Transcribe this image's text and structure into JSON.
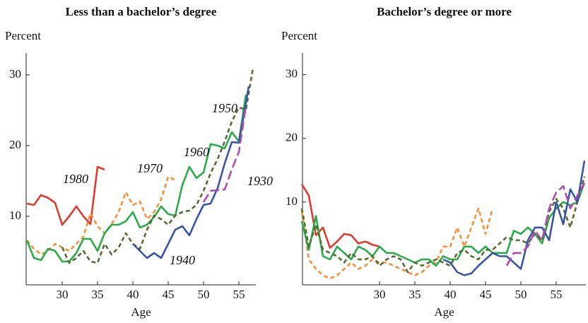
{
  "chart_data": [
    {
      "type": "line",
      "title": "Less than a bachelor’s degree",
      "y_label": "Percent",
      "x_label": "Age",
      "xlim": [
        24.9,
        57.4
      ],
      "ylim": [
        0.3,
        33.1
      ],
      "xticks": [
        30,
        35,
        40,
        45,
        50,
        55
      ],
      "yticks": [
        10,
        20,
        30
      ],
      "series": [
        {
          "name": "1980",
          "color": "#e03a2f",
          "dash": "solid",
          "x": [
            25,
            26,
            27,
            28,
            29,
            30,
            31,
            32,
            33,
            34,
            35,
            36
          ],
          "values": [
            11.8,
            11.6,
            13.0,
            12.6,
            11.9,
            8.8,
            10.0,
            11.4,
            10.0,
            8.9,
            17.0,
            16.6
          ]
        },
        {
          "name": "1970",
          "color": "#f4903a",
          "dash": "dashed",
          "x": [
            25,
            26,
            27,
            28,
            29,
            30,
            31,
            32,
            33,
            34,
            35,
            36,
            37,
            38,
            39,
            40,
            41,
            42,
            43,
            44,
            45,
            46
          ],
          "values": [
            6.6,
            5.4,
            4.6,
            5.1,
            6.1,
            5.6,
            5.1,
            6.1,
            7.1,
            10.4,
            8.6,
            7.6,
            8.9,
            10.6,
            13.4,
            11.6,
            12.1,
            9.6,
            10.6,
            12.4,
            15.6,
            15.1
          ]
        },
        {
          "name": "1960",
          "color": "#2aab4a",
          "dash": "solid",
          "x": [
            25,
            26,
            27,
            28,
            29,
            30,
            31,
            32,
            33,
            34,
            35,
            36,
            37,
            38,
            39,
            40,
            41,
            42,
            43,
            44,
            45,
            46,
            47,
            48,
            49,
            50,
            51,
            52,
            53,
            54,
            55,
            56
          ],
          "values": [
            6.6,
            4.1,
            3.8,
            5.4,
            5.1,
            3.6,
            3.6,
            4.8,
            6.8,
            6.8,
            5.1,
            7.6,
            8.8,
            8.8,
            9.3,
            10.6,
            8.4,
            8.8,
            9.9,
            11.4,
            10.3,
            10.1,
            14.4,
            17.0,
            15.4,
            16.2,
            20.2,
            20.0,
            19.6,
            21.9,
            20.6,
            27.2
          ]
        },
        {
          "name": "1950",
          "color": "#566b30",
          "dash": "dashed",
          "x": [
            30,
            31,
            32,
            33,
            34,
            35,
            36,
            37,
            38,
            39,
            40,
            41,
            42,
            43,
            44,
            45,
            46,
            47,
            48,
            49,
            50,
            51,
            52,
            53,
            54,
            55,
            56,
            57
          ],
          "values": [
            5.6,
            3.4,
            4.1,
            5.1,
            3.6,
            3.4,
            6.1,
            4.6,
            5.6,
            7.6,
            6.1,
            5.4,
            8.1,
            10.1,
            9.6,
            8.8,
            10.1,
            10.6,
            10.8,
            11.6,
            13.6,
            16.1,
            18.1,
            20.6,
            23.4,
            25.4,
            25.1,
            31.0
          ]
        },
        {
          "name": "1940",
          "color": "#3a54a4",
          "dash": "solid",
          "x": [
            40,
            41,
            42,
            43,
            44,
            45,
            46,
            47,
            48,
            49,
            50,
            51,
            52,
            53,
            54,
            55,
            56.4
          ],
          "values": [
            6.1,
            5.1,
            4.1,
            4.8,
            4.1,
            6.1,
            8.1,
            8.6,
            7.3,
            9.6,
            11.6,
            11.8,
            14.0,
            17.5,
            20.5,
            20.4,
            28.4
          ]
        },
        {
          "name": "1930",
          "color": "#b04cae",
          "dash": "long-dashed",
          "x": [
            50,
            51,
            52,
            53,
            54,
            55,
            56
          ],
          "values": [
            12.0,
            13.6,
            13.7,
            13.8,
            16.6,
            19.1,
            25.6
          ]
        }
      ]
    },
    {
      "type": "line",
      "title": "Bachelor’s degree or more",
      "y_label": "Percent",
      "x_label": "Age",
      "xlim": [
        19.1,
        59.2
      ],
      "ylim": [
        -3,
        33.4
      ],
      "xticks": [
        30,
        35,
        40,
        45,
        50,
        55
      ],
      "yticks": [
        10,
        20,
        30
      ],
      "series": [
        {
          "color": "#e03a2f",
          "dash": "solid",
          "x": [
            19,
            20,
            21,
            22,
            23,
            24,
            25,
            26,
            27,
            28,
            29,
            30
          ],
          "values": [
            12.8,
            11.0,
            4.8,
            6.0,
            2.8,
            3.8,
            5.0,
            4.8,
            3.5,
            3.8,
            3.3,
            3.0
          ]
        },
        {
          "color": "#f4903a",
          "dash": "dashed",
          "x": [
            19,
            20,
            21,
            22,
            23,
            24,
            25,
            26,
            27,
            28,
            29,
            30,
            31,
            32,
            33,
            34,
            35,
            36,
            37,
            38,
            39,
            40,
            41,
            42,
            43,
            44,
            45,
            46
          ],
          "values": [
            8.5,
            1.0,
            -0.5,
            -1.5,
            -2.0,
            -1.5,
            -0.5,
            0.5,
            -0.5,
            0.0,
            1.0,
            0.5,
            0.5,
            0.0,
            -0.5,
            -1.0,
            -1.5,
            -1.0,
            0.0,
            0.5,
            3.0,
            3.0,
            6.0,
            3.0,
            6.0,
            9.0,
            5.0,
            9.0
          ]
        },
        {
          "color": "#2aab4a",
          "dash": "solid",
          "x": [
            19,
            20,
            21,
            22,
            23,
            24,
            25,
            26,
            27,
            28,
            29,
            30,
            31,
            32,
            33,
            34,
            35,
            36,
            37,
            38,
            39,
            40,
            41,
            42,
            43,
            44,
            45,
            46,
            47,
            48,
            49,
            50,
            51,
            52,
            53,
            54,
            55,
            56,
            57,
            58,
            59
          ],
          "values": [
            7.0,
            2.5,
            7.8,
            1.5,
            1.0,
            3.0,
            2.0,
            1.0,
            3.0,
            2.5,
            1.5,
            3.0,
            2.0,
            2.0,
            1.5,
            1.0,
            0.5,
            1.0,
            1.0,
            0.0,
            1.5,
            1.0,
            1.0,
            3.0,
            3.0,
            2.0,
            3.0,
            2.0,
            2.0,
            2.0,
            5.5,
            5.0,
            6.0,
            5.0,
            3.5,
            7.5,
            9.0,
            10.0,
            9.5,
            10.0,
            13.0
          ]
        },
        {
          "color": "#566b30",
          "dash": "dashed",
          "x": [
            19,
            20,
            21,
            22,
            23,
            24,
            25,
            26,
            27,
            28,
            29,
            30,
            31,
            32,
            33,
            34,
            35,
            36,
            37,
            38,
            39,
            40,
            41,
            42,
            43,
            44,
            45,
            46,
            47,
            48,
            49,
            50,
            51,
            52,
            53,
            54,
            55,
            56,
            57,
            58,
            59
          ],
          "values": [
            9.0,
            3.0,
            6.5,
            2.5,
            2.0,
            1.5,
            0.5,
            2.0,
            1.0,
            1.0,
            1.5,
            0.0,
            1.0,
            1.5,
            1.0,
            -1.0,
            0.5,
            0.0,
            0.5,
            1.0,
            0.5,
            0.0,
            2.0,
            2.5,
            1.5,
            1.0,
            2.5,
            2.5,
            3.5,
            4.5,
            4.0,
            4.0,
            3.5,
            5.0,
            4.0,
            8.5,
            10.5,
            9.0,
            6.0,
            10.0,
            14.0
          ]
        },
        {
          "color": "#3a54a4",
          "dash": "solid",
          "x": [
            39,
            40,
            41,
            42,
            43,
            44,
            45,
            46,
            47,
            48,
            49,
            50,
            51,
            52,
            53,
            54,
            55,
            56,
            57,
            58,
            59
          ],
          "values": [
            1.0,
            0.5,
            -1.0,
            -1.5,
            -1.2,
            0.0,
            1.0,
            2.0,
            1.5,
            1.5,
            0.5,
            -0.5,
            4.0,
            6.0,
            6.0,
            4.0,
            10.0,
            6.5,
            12.0,
            10.0,
            16.5
          ]
        },
        {
          "color": "#b04cae",
          "dash": "long-dashed",
          "x": [
            48,
            49,
            50,
            51,
            52,
            53,
            54,
            55,
            56,
            57,
            58,
            59
          ],
          "values": [
            0.0,
            2.0,
            2.0,
            3.0,
            5.5,
            4.0,
            9.0,
            11.5,
            12.5,
            9.0,
            11.0,
            13.0
          ]
        }
      ]
    }
  ]
}
